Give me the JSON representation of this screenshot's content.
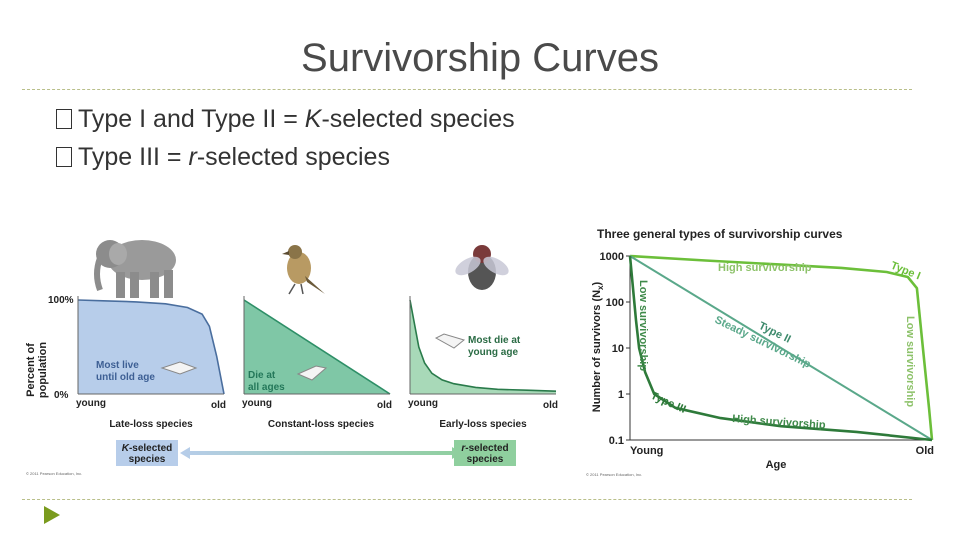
{
  "slide": {
    "title": "Survivorship Curves",
    "bullets": [
      {
        "pre": "Type I and Type II = ",
        "em": "K",
        "post": "-selected species"
      },
      {
        "pre": "Type III = ",
        "em": "r",
        "post": "-selected species"
      }
    ]
  },
  "chart_data": [
    {
      "type": "area",
      "ylabel_line1": "Percent of",
      "ylabel_line2": "population",
      "y_ticks": [
        "100%",
        "0%"
      ],
      "panels": [
        {
          "x_start": "young",
          "x_end": "old",
          "caption": "Late-loss species",
          "note_line1": "Most live",
          "note_line2": "until old age",
          "x": [
            0,
            0.2,
            0.4,
            0.6,
            0.75,
            0.85,
            0.9,
            0.95,
            1.0
          ],
          "y": [
            100,
            99,
            98,
            96,
            92,
            85,
            72,
            40,
            0
          ]
        },
        {
          "x_start": "young",
          "x_end": "old",
          "caption": "Constant-loss species",
          "note_line1": "Die at",
          "note_line2": "all ages",
          "x": [
            0,
            1.0
          ],
          "y": [
            100,
            0
          ]
        },
        {
          "x_start": "young",
          "x_end": "old",
          "caption": "Early-loss species",
          "note_line1": "Most die at",
          "note_line2": "young age",
          "x": [
            0,
            0.03,
            0.06,
            0.1,
            0.15,
            0.22,
            0.3,
            0.45,
            0.6,
            0.8,
            1.0
          ],
          "y": [
            100,
            75,
            50,
            33,
            22,
            15,
            11,
            7,
            5,
            4,
            3
          ]
        }
      ],
      "selection": {
        "left_em": "K",
        "left_text": "-selected",
        "left_line2": "species",
        "right_em": "r",
        "right_text": "-selected",
        "right_line2": "species"
      },
      "colors": {
        "late": "#b7cdea",
        "constant": "#7fc7a6",
        "early": "#a8d9b8",
        "late_line": "#4a6e9e",
        "constant_line": "#2e8f67",
        "early_line": "#2a7b4b"
      },
      "credit": "© 2011 Pearson Education, Inc."
    },
    {
      "type": "line",
      "title": "Three general types of survivorship curves",
      "ylabel": "Number of survivors (N",
      "ylabel_sub": "x",
      "ylabel_end": ")",
      "y_scale": "log",
      "y_ticks": [
        1000,
        100,
        10,
        1,
        0.1
      ],
      "ylim": [
        0.1,
        1000
      ],
      "xlabel": "Age",
      "x_tick_labels": [
        "Young",
        "Old"
      ],
      "xlim": [
        0,
        1
      ],
      "series": [
        {
          "name": "Type I",
          "color": "#6cbf3a",
          "x": [
            0,
            0.25,
            0.5,
            0.7,
            0.85,
            0.92,
            0.95,
            0.97,
            0.99,
            1.0
          ],
          "y": [
            1000,
            800,
            650,
            550,
            450,
            350,
            200,
            10,
            0.5,
            0.1
          ]
        },
        {
          "name": "Type II",
          "color": "#5aa88a",
          "x": [
            0,
            1.0
          ],
          "y": [
            1000,
            0.1
          ]
        },
        {
          "name": "Type III",
          "color": "#2e7a3a",
          "x": [
            0,
            0.01,
            0.02,
            0.03,
            0.05,
            0.08,
            0.15,
            0.3,
            0.5,
            0.75,
            1.0
          ],
          "y": [
            1000,
            200,
            40,
            10,
            3,
            1,
            0.5,
            0.3,
            0.2,
            0.15,
            0.1
          ]
        }
      ],
      "annotations": {
        "type1_high": "High survivorship",
        "type1_low": "Low survivorship",
        "type2_label": "Steady survivorship",
        "type3_low": "Low survivorship",
        "type3_high": "High survivorship"
      },
      "credit": "© 2011 Pearson Education, Inc."
    }
  ]
}
